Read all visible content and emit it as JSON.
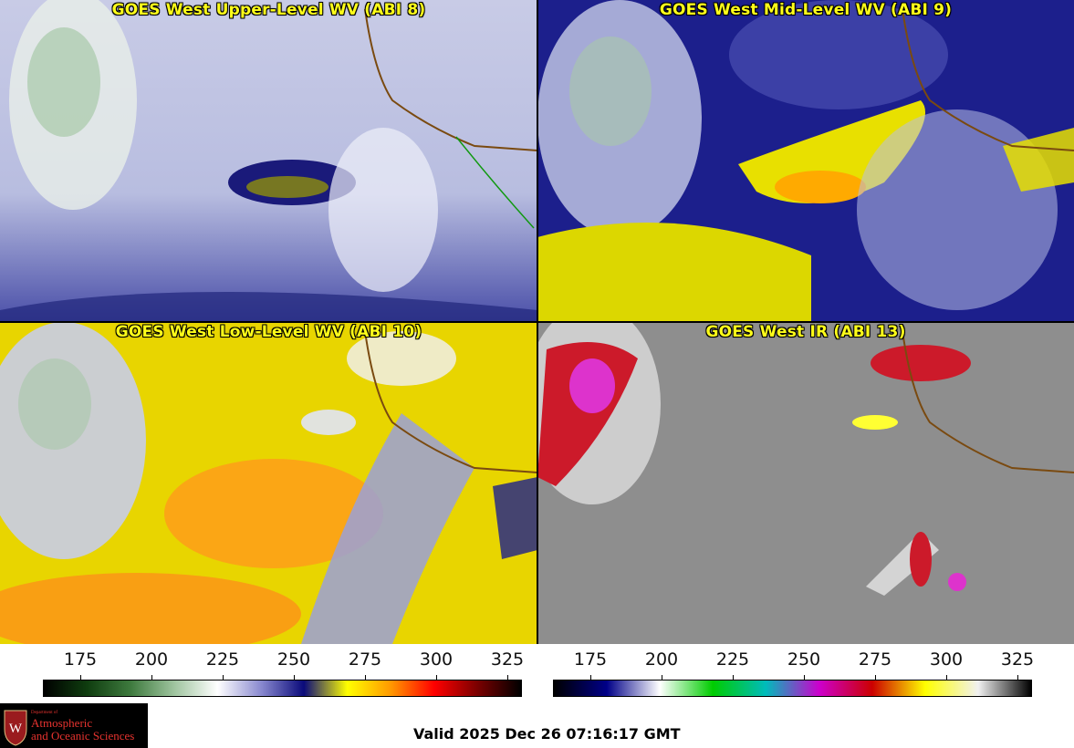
{
  "panels": [
    {
      "title": "GOES West Upper-Level WV (ABI 8)"
    },
    {
      "title": "GOES West Mid-Level WV (ABI 9)"
    },
    {
      "title": "GOES West Low-Level WV (ABI 10)"
    },
    {
      "title": "GOES West IR (ABI 13)"
    }
  ],
  "colorbar_wv": {
    "ticks": [
      "175",
      "200",
      "225",
      "250",
      "275",
      "300",
      "325"
    ],
    "colors": [
      "#000000",
      "#0f3d0f",
      "#3e7a3e",
      "#9ec49e",
      "#ffffff",
      "#8a8ad0",
      "#0a0a7a",
      "#ffff00",
      "#ff9900",
      "#ff0000",
      "#7a0000",
      "#000000"
    ]
  },
  "colorbar_ir": {
    "ticks": [
      "175",
      "200",
      "225",
      "250",
      "275",
      "300",
      "325"
    ],
    "colors": [
      "#000000",
      "#000088",
      "#ffffff",
      "#00cc00",
      "#00bbbb",
      "#cc00cc",
      "#cc0000",
      "#ffff00",
      "#f0f0f0",
      "#000000"
    ]
  },
  "logo": {
    "dept": "Department of",
    "line1": "Atmospheric",
    "line2": "and Oceanic Sciences",
    "emblem": "W"
  },
  "valid_time": "Valid 2025 Dec 26 07:16:17 GMT"
}
